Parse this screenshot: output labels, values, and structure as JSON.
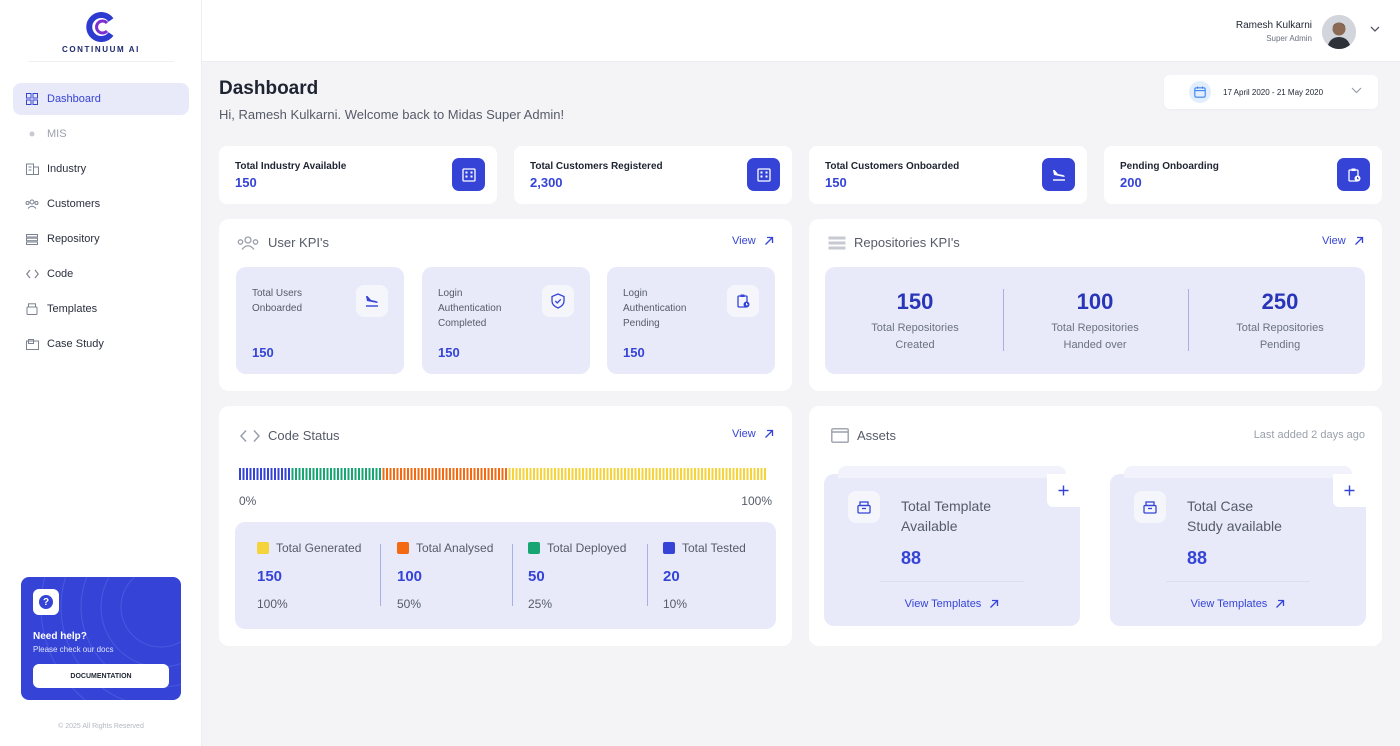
{
  "brand": {
    "name": "CONTINUUM AI"
  },
  "sidebar": {
    "items": [
      {
        "label": "Dashboard",
        "icon": "grid-icon"
      },
      {
        "label": "MIS",
        "icon": "dot-icon"
      },
      {
        "label": "Industry",
        "icon": "building-icon"
      },
      {
        "label": "Customers",
        "icon": "users-icon"
      },
      {
        "label": "Repository",
        "icon": "list-icon"
      },
      {
        "label": "Code",
        "icon": "code-icon"
      },
      {
        "label": "Templates",
        "icon": "box-icon"
      },
      {
        "label": "Case Study",
        "icon": "folder-icon"
      }
    ],
    "help": {
      "title": "Need help?",
      "subtitle": "Please check our docs",
      "button": "DOCUMENTATION"
    },
    "copyright": "© 2025 All Rights Reserved"
  },
  "topbar": {
    "user_name": "Ramesh Kulkarni",
    "user_role": "Super Admin"
  },
  "header": {
    "title": "Dashboard",
    "welcome": "Hi, Ramesh Kulkarni. Welcome back to Midas Super Admin!",
    "date_range": "17 April 2020 - 21 May 2020"
  },
  "stats": [
    {
      "label": "Total Industry Available",
      "value": "150",
      "icon": "building-icon"
    },
    {
      "label": "Total Customers Registered",
      "value": "2,300",
      "icon": "building-icon"
    },
    {
      "label": "Total Customers Onboarded",
      "value": "150",
      "icon": "plane-landing-icon"
    },
    {
      "label": "Pending Onboarding",
      "value": "200",
      "icon": "clipboard-clock-icon"
    }
  ],
  "user_kpi": {
    "title": "User KPI's",
    "view": "View",
    "cards": [
      {
        "label_1": "Total Users",
        "label_2": "Onboarded",
        "label_3": "",
        "value": "150",
        "icon": "plane-landing-icon"
      },
      {
        "label_1": "Login",
        "label_2": "Authentication",
        "label_3": "Completed",
        "value": "150",
        "icon": "shield-check-icon"
      },
      {
        "label_1": "Login",
        "label_2": "Authentication",
        "label_3": "Pending",
        "value": "150",
        "icon": "clipboard-clock-icon"
      }
    ]
  },
  "repo_kpi": {
    "title": "Repositories KPI's",
    "view": "View",
    "items": [
      {
        "value": "150",
        "label_1": "Total Repositories",
        "label_2": "Created"
      },
      {
        "value": "100",
        "label_1": "Total Repositories",
        "label_2": "Handed over"
      },
      {
        "value": "250",
        "label_1": "Total Repositories",
        "label_2": "Pending"
      }
    ]
  },
  "code_status": {
    "title": "Code Status",
    "view": "View",
    "min_label": "0%",
    "max_label": "100%",
    "segments": [
      {
        "color": "#3544d6",
        "fraction": 0.1
      },
      {
        "color": "#17a673",
        "fraction": 0.17
      },
      {
        "color": "#f36a12",
        "fraction": 0.24
      },
      {
        "color": "#f5d33a",
        "fraction": 0.49
      }
    ],
    "items": [
      {
        "label": "Total Generated",
        "color": "#f5d33a",
        "value": "150",
        "percent": "100%"
      },
      {
        "label": "Total Analysed",
        "color": "#f36a12",
        "value": "100",
        "percent": "50%"
      },
      {
        "label": "Total Deployed",
        "color": "#17a673",
        "value": "50",
        "percent": "25%"
      },
      {
        "label": "Total Tested",
        "color": "#3544d6",
        "value": "20",
        "percent": "10%"
      }
    ]
  },
  "assets": {
    "title": "Assets",
    "last_added": "Last added 2 days ago",
    "cards": [
      {
        "title_1": "Total Template",
        "title_2": "Available",
        "value": "88",
        "link": "View Templates"
      },
      {
        "title_1": "Total Case",
        "title_2": "Study available",
        "value": "88",
        "link": "View Templates"
      }
    ]
  }
}
